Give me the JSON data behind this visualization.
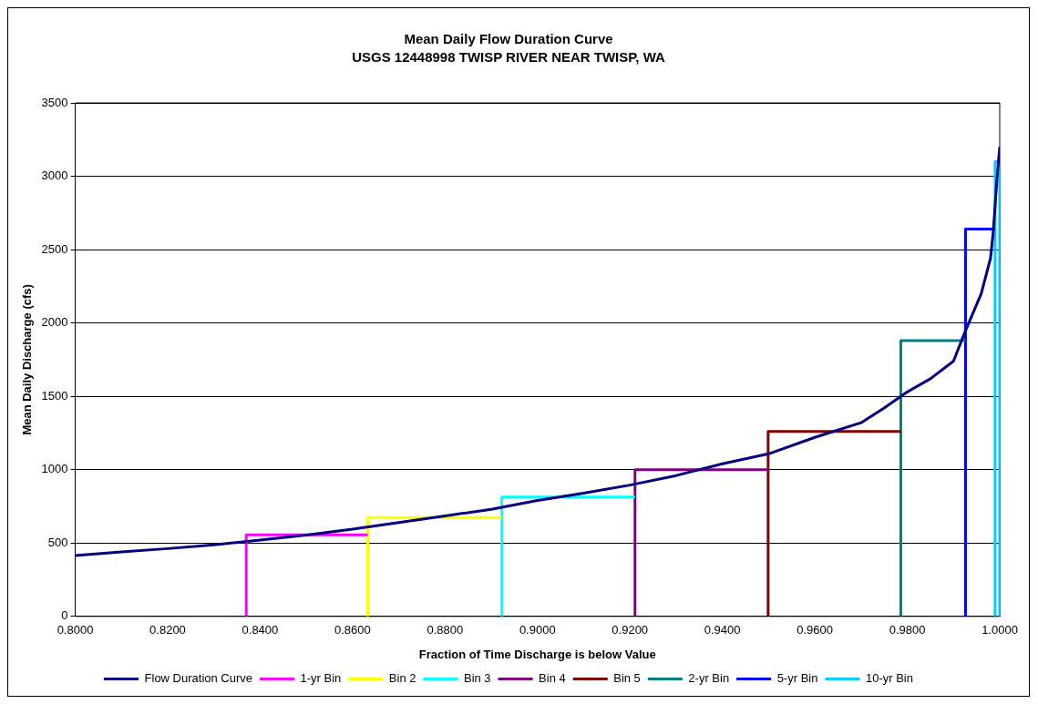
{
  "chart_data": {
    "type": "line",
    "title": "Mean Daily Flow Duration Curve",
    "subtitle": "USGS 12448998 TWISP RIVER NEAR TWISP, WA",
    "xlabel": "Fraction of Time Discharge is below Value",
    "ylabel": "Mean Daily Discharge (cfs)",
    "xlim": [
      0.8,
      1.0
    ],
    "xticks": [
      {
        "value": 0.8,
        "label": "0.8000"
      },
      {
        "value": 0.82,
        "label": "0.8200"
      },
      {
        "value": 0.84,
        "label": "0.8400"
      },
      {
        "value": 0.86,
        "label": "0.8600"
      },
      {
        "value": 0.88,
        "label": "0.8800"
      },
      {
        "value": 0.9,
        "label": "0.9000"
      },
      {
        "value": 0.92,
        "label": "0.9200"
      },
      {
        "value": 0.94,
        "label": "0.9400"
      },
      {
        "value": 0.96,
        "label": "0.9600"
      },
      {
        "value": 0.98,
        "label": "0.9800"
      },
      {
        "value": 1.0,
        "label": "1.0000"
      }
    ],
    "ylim": [
      0,
      3500
    ],
    "yticks": [
      0,
      500,
      1000,
      1500,
      2000,
      2500,
      3000,
      3500
    ],
    "grid": "y",
    "legend": "bottom",
    "marker": "none",
    "line_style": "solid",
    "series": [
      {
        "name": "Flow Duration Curve",
        "color": "#000080",
        "x": [
          0.8,
          0.81,
          0.82,
          0.83,
          0.84,
          0.85,
          0.86,
          0.87,
          0.88,
          0.89,
          0.9,
          0.91,
          0.92,
          0.93,
          0.94,
          0.95,
          0.96,
          0.97,
          0.975,
          0.98,
          0.985,
          0.99,
          0.9925,
          0.996,
          0.998,
          0.9986,
          0.9994,
          1.0
        ],
        "values": [
          415,
          440,
          462,
          488,
          520,
          555,
          595,
          640,
          685,
          730,
          790,
          840,
          895,
          960,
          1040,
          1108,
          1220,
          1320,
          1420,
          1530,
          1620,
          1740,
          1940,
          2200,
          2440,
          2620,
          2980,
          3200
        ]
      },
      {
        "name": "1-yr Bin",
        "color": "#ff00ff",
        "x": [
          0.837,
          0.837,
          0.8633
        ],
        "values": [
          0,
          556,
          556
        ]
      },
      {
        "name": "Bin 2",
        "color": "#ffff00",
        "x": [
          0.8633,
          0.8633,
          0.8923
        ],
        "values": [
          0,
          674,
          674
        ]
      },
      {
        "name": "Bin 3",
        "color": "#00ffff",
        "x": [
          0.8923,
          0.8923,
          0.9211
        ],
        "values": [
          0,
          814,
          814
        ]
      },
      {
        "name": "Bin 4",
        "color": "#800080",
        "x": [
          0.9211,
          0.9211,
          0.9499
        ],
        "values": [
          0,
          1000,
          1000
        ]
      },
      {
        "name": "Bin 5",
        "color": "#800000",
        "x": [
          0.9499,
          0.9499,
          0.9786
        ],
        "values": [
          0,
          1260,
          1260
        ]
      },
      {
        "name": "2-yr Bin",
        "color": "#008080",
        "x": [
          0.9786,
          0.9786,
          0.9926
        ],
        "values": [
          0,
          1880,
          1880
        ]
      },
      {
        "name": "5-yr Bin",
        "color": "#0000ff",
        "x": [
          0.9926,
          0.9926,
          0.999
        ],
        "values": [
          0,
          2640,
          2640
        ]
      },
      {
        "name": "10-yr Bin",
        "color": "#00ccff",
        "x": [
          0.999,
          0.999,
          1.0,
          1.0
        ],
        "values": [
          0,
          3100,
          3100,
          0
        ]
      }
    ]
  }
}
